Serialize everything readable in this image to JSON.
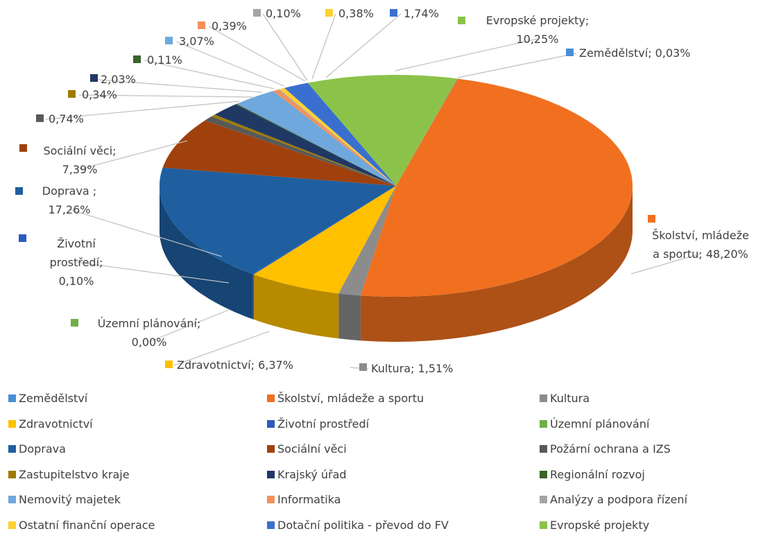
{
  "chart_data": {
    "type": "pie3d",
    "categories": [
      "Zemědělství",
      "Školství, mládeže a sportu",
      "Kultura",
      "Zdravotnictví",
      "Životní prostředí",
      "Územní plánování",
      "Doprava",
      "Sociální věci",
      "Požární ochrana a IZS",
      "Zastupitelstvo kraje",
      "Krajský úřad",
      "Regionální rozvoj",
      "Nemovitý majetek",
      "Informatika",
      "Analýzy a podpora řízení",
      "Ostatní finanční operace",
      "Dotační politika - převod do FV",
      "Evropské projekty"
    ],
    "values": [
      0.03,
      48.2,
      1.51,
      6.37,
      0.1,
      0.0,
      17.26,
      7.39,
      0.74,
      0.34,
      2.03,
      0.11,
      3.07,
      0.39,
      0.1,
      0.38,
      1.74,
      10.25
    ],
    "value_labels": [
      "Zemědělství; 0,03%",
      "Školství, mládeže a sportu; 48,20%",
      "Kultura; 1,51%",
      "Zdravotnictví; 6,37%",
      "Životní prostředí; 0,10%",
      "Územní plánování; 0,00%",
      "Doprava ; 17,26%",
      "Sociální věci; 7,39%",
      "0,74%",
      "0,34%",
      "2,03%",
      "0,11%",
      "3,07%",
      "0,39%",
      "0,10%",
      "0,38%",
      "1,74%",
      "Evropské projekty; 10,25%"
    ],
    "colors": [
      "#4a8fd4",
      "#f07020",
      "#8c8c8c",
      "#ffc000",
      "#2a5bbf",
      "#70ad47",
      "#1f5fa0",
      "#a0410d",
      "#595959",
      "#9e7b00",
      "#203864",
      "#38642a",
      "#6fa8dc",
      "#f4915a",
      "#a5a5a5",
      "#ffd030",
      "#3a6fd0",
      "#8bc34a"
    ],
    "legend": "bottom"
  }
}
